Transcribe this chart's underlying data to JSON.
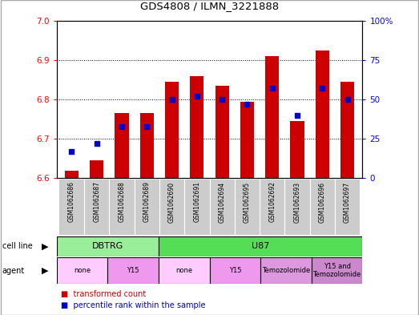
{
  "title": "GDS4808 / ILMN_3221888",
  "samples": [
    "GSM1062686",
    "GSM1062687",
    "GSM1062688",
    "GSM1062689",
    "GSM1062690",
    "GSM1062691",
    "GSM1062694",
    "GSM1062695",
    "GSM1062692",
    "GSM1062693",
    "GSM1062696",
    "GSM1062697"
  ],
  "transformed_count": [
    6.62,
    6.645,
    6.765,
    6.765,
    6.845,
    6.86,
    6.835,
    6.795,
    6.91,
    6.745,
    6.925,
    6.845
  ],
  "percentile_rank": [
    17,
    22,
    33,
    33,
    50,
    52,
    50,
    47,
    57,
    40,
    57,
    50
  ],
  "ylim": [
    6.6,
    7.0
  ],
  "yticks_left": [
    6.6,
    6.7,
    6.8,
    6.9,
    7.0
  ],
  "yticks_right": [
    0,
    25,
    50,
    75,
    100
  ],
  "bar_color": "#cc0000",
  "dot_color": "#0000cc",
  "cell_line_groups": [
    {
      "label": "DBTRG",
      "start": 0,
      "end": 3,
      "color": "#99ee99"
    },
    {
      "label": "U87",
      "start": 4,
      "end": 11,
      "color": "#55dd55"
    }
  ],
  "agent_groups": [
    {
      "label": "none",
      "start": 0,
      "end": 1,
      "color": "#ffccff"
    },
    {
      "label": "Y15",
      "start": 2,
      "end": 3,
      "color": "#ee99ee"
    },
    {
      "label": "none",
      "start": 4,
      "end": 5,
      "color": "#ffccff"
    },
    {
      "label": "Y15",
      "start": 6,
      "end": 7,
      "color": "#ee99ee"
    },
    {
      "label": "Temozolomide",
      "start": 8,
      "end": 9,
      "color": "#dd99dd"
    },
    {
      "label": "Y15 and\nTemozolomide",
      "start": 10,
      "end": 11,
      "color": "#cc88cc"
    }
  ]
}
